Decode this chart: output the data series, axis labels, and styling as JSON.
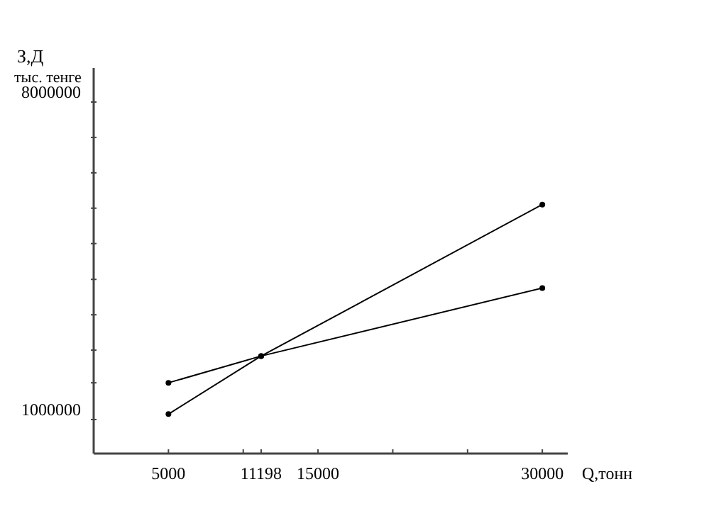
{
  "chart_data": {
    "type": "line",
    "ylabel": "З,Д\nтыс. тенге",
    "xlabel": "Q,тонн",
    "x": [
      5000,
      11198,
      30000
    ],
    "series": [
      {
        "color": "#000000",
        "values": [
          1120000,
          2400000,
          5740000
        ]
      },
      {
        "color": "#000000",
        "values": [
          1810000,
          2400000,
          3900000
        ]
      }
    ],
    "xlim": [
      0,
      31700
    ],
    "ylim": [
      250000,
      8750000
    ],
    "xticks": [
      5000,
      {
        "value": 10000,
        "label": null
      },
      11198,
      15000,
      {
        "value": 20000,
        "label": null
      },
      {
        "value": 25000,
        "label": null
      },
      30000
    ],
    "yticks": [
      1000000,
      {
        "value": 1810000,
        "label": null
      },
      {
        "value": 2530000,
        "label": null
      },
      {
        "value": 3310000,
        "label": null
      },
      {
        "value": 4090000,
        "label": null
      },
      {
        "value": 4880000,
        "label": null
      },
      {
        "value": 5660000,
        "label": null
      },
      {
        "value": 6440000,
        "label": null
      },
      {
        "value": 7220000,
        "label": null
      },
      8000000
    ],
    "marker": "circle",
    "line_style": "solid",
    "grid": false
  }
}
